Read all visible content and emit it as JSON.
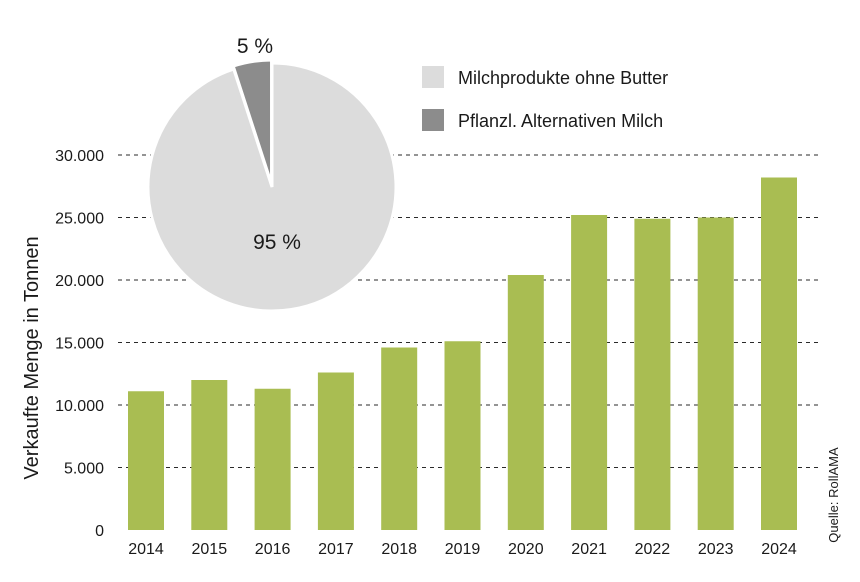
{
  "chart_data": [
    {
      "type": "bar",
      "categories": [
        "2014",
        "2015",
        "2016",
        "2017",
        "2018",
        "2019",
        "2020",
        "2021",
        "2022",
        "2023",
        "2024"
      ],
      "values": [
        11100,
        12000,
        11300,
        12600,
        14600,
        15100,
        20400,
        25200,
        24900,
        25000,
        28200
      ],
      "ylabel": "Verkaufte Menge in Tonnen",
      "ylim": [
        0,
        30000
      ],
      "yticks": [
        0,
        5000,
        10000,
        15000,
        20000,
        25000,
        30000
      ],
      "ytick_labels": [
        "0",
        "5.000",
        "10.000",
        "15.000",
        "20.000",
        "25.000",
        "30.000"
      ],
      "grid": "dashed horizontal",
      "bar_color": "#a9bd52",
      "source": "Quelle: RollAMA"
    },
    {
      "type": "pie",
      "slices": [
        {
          "name": "Milchprodukte ohne Butter",
          "value": 95,
          "label": "95 %",
          "color": "#dcdcdc"
        },
        {
          "name": "Pflanzl. Alternativen Milch",
          "value": 5,
          "label": "5 %",
          "color": "#8c8c8c"
        }
      ],
      "legend_position": "top-right"
    }
  ]
}
